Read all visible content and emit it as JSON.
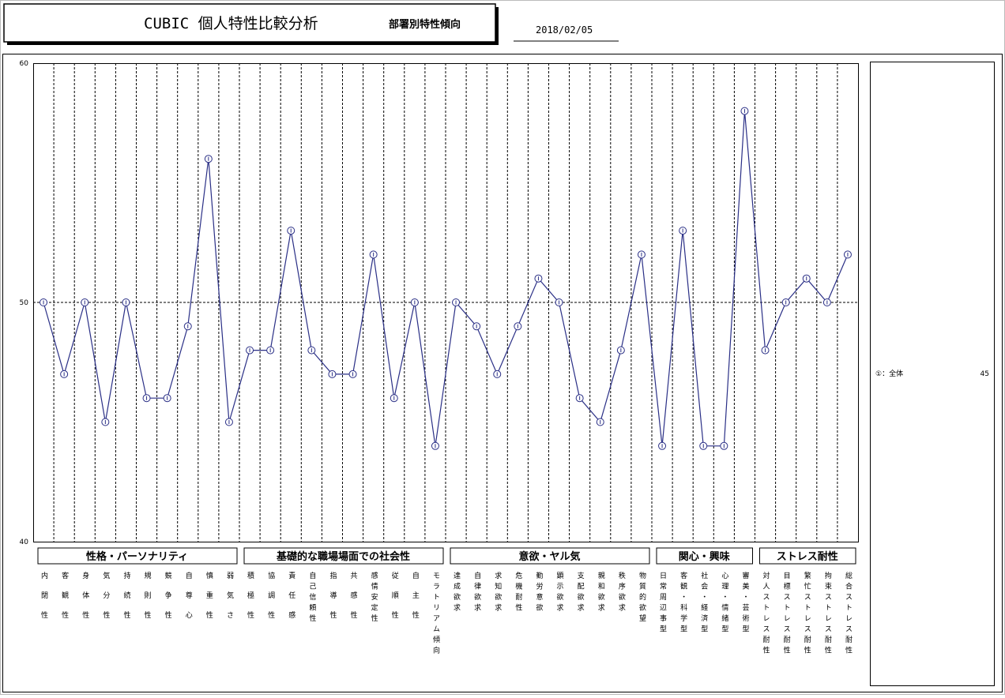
{
  "chart_data": {
    "type": "line",
    "title": "CUBIC 個人特性比較分析",
    "subtitle": "部署別特性傾向",
    "date": "2018/02/05",
    "groups": [
      {
        "name": "性格・パーソナリティ",
        "categories": [
          "内閉性",
          "客観性",
          "身体性",
          "気分性",
          "持続性",
          "規則性",
          "競争性",
          "自尊心",
          "慎重性",
          "弱気さ"
        ]
      },
      {
        "name": "基礎的な職場場面での社会性",
        "categories": [
          "積極性",
          "協調性",
          "責任感",
          "自己信頼性",
          "指導性",
          "共感性",
          "感情安定性",
          "従順性",
          "自主性",
          "モラトリアム傾向"
        ]
      },
      {
        "name": "意欲・ヤル気",
        "categories": [
          "達成欲求",
          "自律欲求",
          "求知欲求",
          "危機耐性",
          "勤労意欲",
          "顕示欲求",
          "支配欲求",
          "親和欲求",
          "秩序欲求",
          "物質的欲望"
        ]
      },
      {
        "name": "関心・興味",
        "categories": [
          "日常周辺事型",
          "客観・科学型",
          "社会・経済型",
          "心理・情緒型",
          "審美・芸術型"
        ]
      },
      {
        "name": "ストレス耐性",
        "categories": [
          "対人ストレス耐性",
          "目標ストレス耐性",
          "繁忙ストレス耐性",
          "拘束ストレス耐性",
          "総合ストレス耐性"
        ]
      }
    ],
    "series": [
      {
        "name": "①：全体",
        "count": 45,
        "color": "#2a2f86",
        "values": [
          50,
          47,
          50,
          45,
          50,
          46,
          46,
          49,
          56,
          45,
          48,
          48,
          53,
          48,
          47,
          47,
          52,
          46,
          50,
          44,
          50,
          49,
          47,
          49,
          51,
          50,
          46,
          45,
          48,
          52,
          44,
          53,
          44,
          44,
          58,
          48,
          50,
          51,
          50,
          52
        ]
      }
    ],
    "ylim": [
      40,
      60
    ],
    "yticks": [
      40,
      50,
      60
    ],
    "grid": true
  }
}
